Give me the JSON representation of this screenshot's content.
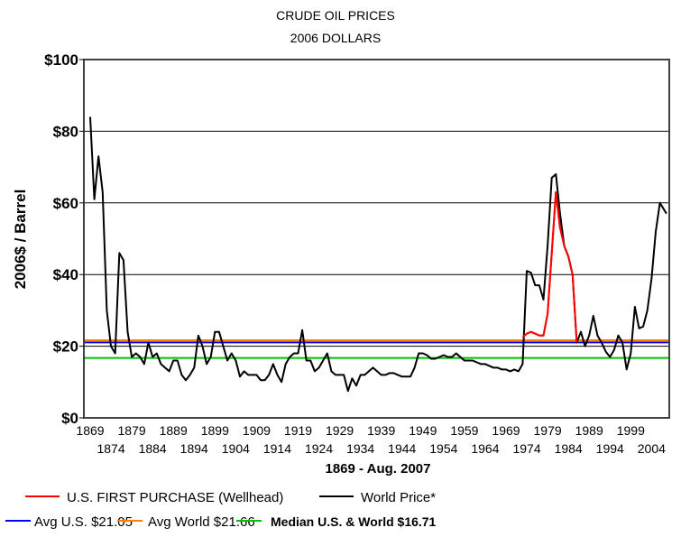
{
  "chart_data": {
    "type": "line",
    "title": "CRUDE OIL PRICES",
    "subtitle": "2006 DOLLARS",
    "xlabel": "1869 - Aug. 2007",
    "ylabel": "2006$ / Barrel",
    "ylim": [
      0,
      100
    ],
    "xlim": [
      1869,
      2007.6
    ],
    "yticks": [
      0,
      20,
      40,
      60,
      80,
      100
    ],
    "ytick_labels": [
      "$0",
      "$20",
      "$40",
      "$60",
      "$80",
      "$100"
    ],
    "xticks_top": [
      1869,
      1879,
      1889,
      1899,
      1909,
      1919,
      1929,
      1939,
      1949,
      1959,
      1969,
      1979,
      1989,
      1999
    ],
    "xticks_bottom": [
      1874,
      1884,
      1894,
      1904,
      1914,
      1924,
      1934,
      1944,
      1954,
      1964,
      1974,
      1984,
      1994,
      2004
    ],
    "grid": true,
    "series": [
      {
        "name": "World Price*",
        "color": "#000000",
        "x": [
          1869,
          1870,
          1871,
          1872,
          1873,
          1874,
          1875,
          1876,
          1877,
          1878,
          1879,
          1880,
          1881,
          1882,
          1883,
          1884,
          1885,
          1886,
          1887,
          1888,
          1889,
          1890,
          1891,
          1892,
          1893,
          1894,
          1895,
          1896,
          1897,
          1898,
          1899,
          1900,
          1901,
          1902,
          1903,
          1904,
          1905,
          1906,
          1907,
          1908,
          1909,
          1910,
          1911,
          1912,
          1913,
          1914,
          1915,
          1916,
          1917,
          1918,
          1919,
          1920,
          1921,
          1922,
          1923,
          1924,
          1925,
          1926,
          1927,
          1928,
          1929,
          1930,
          1931,
          1932,
          1933,
          1934,
          1935,
          1936,
          1937,
          1938,
          1939,
          1940,
          1941,
          1942,
          1943,
          1944,
          1945,
          1946,
          1947,
          1948,
          1949,
          1950,
          1951,
          1952,
          1953,
          1954,
          1955,
          1956,
          1957,
          1958,
          1959,
          1960,
          1961,
          1962,
          1963,
          1964,
          1965,
          1966,
          1967,
          1968,
          1969,
          1970,
          1971,
          1972,
          1973,
          1974,
          1975,
          1976,
          1977,
          1978,
          1979,
          1980,
          1981,
          1982,
          1983,
          1984,
          1985,
          1986,
          1987,
          1988,
          1989,
          1990,
          1991,
          1992,
          1993,
          1994,
          1995,
          1996,
          1997,
          1998,
          1999,
          2000,
          2001,
          2002,
          2003,
          2004,
          2005,
          2006,
          2007.6
        ],
        "values": [
          84,
          61,
          73,
          63,
          30,
          20,
          18,
          46,
          44,
          24,
          17,
          18,
          17,
          15,
          21,
          17,
          18,
          15,
          14,
          13,
          16,
          16,
          12,
          10.5,
          12,
          14,
          23,
          20,
          15,
          17,
          24,
          24,
          20,
          16,
          18,
          16,
          11.5,
          13,
          12,
          12,
          12,
          10.5,
          10.5,
          12,
          15,
          12,
          10,
          15,
          17,
          18,
          18,
          24.5,
          16,
          16,
          13,
          14,
          16,
          18,
          13,
          12,
          12,
          12,
          7.5,
          11,
          9,
          12,
          12,
          13,
          14,
          13,
          12,
          12,
          12.5,
          12.5,
          12,
          11.5,
          11.5,
          11.5,
          14,
          18,
          18,
          17.5,
          16.5,
          16.5,
          17,
          17.5,
          17,
          17,
          18,
          17,
          16,
          16,
          16,
          15.5,
          15,
          15,
          14.5,
          14,
          14,
          13.5,
          13.5,
          13,
          13.5,
          13,
          15,
          41,
          40.5,
          37,
          37,
          33,
          48,
          67,
          68,
          57,
          48,
          45,
          40,
          21,
          24,
          20,
          23,
          28.5,
          23,
          21,
          18.5,
          17,
          19,
          23,
          21,
          13.5,
          18,
          31,
          25,
          25.5,
          30,
          39,
          52,
          60,
          57
        ]
      },
      {
        "name": "U.S. FIRST PURCHASE (Wellhead)",
        "color": "#ff0000",
        "x": [
          1973,
          1974,
          1975,
          1976,
          1977,
          1978,
          1979,
          1980,
          1981,
          1982,
          1983,
          1984,
          1985,
          1986
        ],
        "values": [
          22.5,
          23.5,
          24,
          23.5,
          23,
          23,
          29,
          46,
          63,
          53,
          48,
          45,
          40,
          21
        ]
      }
    ],
    "reference_lines": [
      {
        "name": "Avg U.S.",
        "label": "Avg U.S. $21.05",
        "value": 21.05,
        "color": "#0000ff"
      },
      {
        "name": "Avg World",
        "label": "Avg World $21.66",
        "value": 21.66,
        "color": "#ff8000"
      },
      {
        "name": "Median U.S. & World",
        "label": "Median U.S. & World  $16.71",
        "value": 16.71,
        "color": "#00c000"
      }
    ],
    "legend": {
      "placement": "bottom",
      "row1": [
        "U.S. FIRST PURCHASE (Wellhead)",
        "World Price*"
      ]
    }
  }
}
